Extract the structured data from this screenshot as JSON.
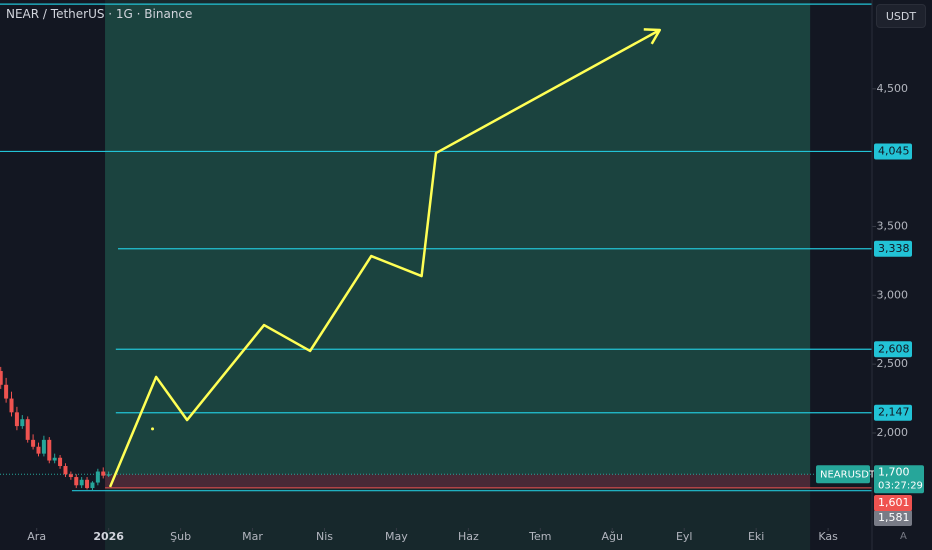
{
  "header": {
    "title": "NEAR / TetherUS · 1G · Binance",
    "currency": "USDT",
    "scale_mode": "A"
  },
  "chart_data": {
    "type": "candlestick",
    "xlim": [
      -0.51,
      11.61
    ],
    "ylim": [
      1150,
      5145
    ],
    "xticks": [
      {
        "value": 0,
        "label": "Ara"
      },
      {
        "value": 1,
        "label": "2026"
      },
      {
        "value": 2,
        "label": "Şub"
      },
      {
        "value": 3,
        "label": "Mar"
      },
      {
        "value": 4,
        "label": "Nis"
      },
      {
        "value": 5,
        "label": "May"
      },
      {
        "value": 6,
        "label": "Haz"
      },
      {
        "value": 7,
        "label": "Tem"
      },
      {
        "value": 8,
        "label": "Ağu"
      },
      {
        "value": 9,
        "label": "Eyl"
      },
      {
        "value": 10,
        "label": "Eki"
      },
      {
        "value": 11,
        "label": "Kas"
      }
    ],
    "yticks": [
      {
        "value": 2000,
        "label": "2,000"
      },
      {
        "value": 2500,
        "label": "2,500"
      },
      {
        "value": 3000,
        "label": "3,000"
      },
      {
        "value": 3500,
        "label": "3,500"
      },
      {
        "value": 4500,
        "label": "4,500"
      }
    ],
    "series": [
      {
        "name": "NEARUSDT",
        "up_color": "#26a69a",
        "down_color": "#ef5350",
        "x": [
          -0.5,
          -0.425,
          -0.35,
          -0.275,
          -0.2,
          -0.125,
          -0.05,
          0.025,
          0.1,
          0.175,
          0.25,
          0.325,
          0.4,
          0.475,
          0.55,
          0.625,
          0.7,
          0.775,
          0.85,
          0.925,
          1.0
        ],
        "open": [
          2450,
          2350,
          2250,
          2150,
          2050,
          2100,
          1950,
          1900,
          1850,
          1950,
          1800,
          1820,
          1760,
          1700,
          1680,
          1620,
          1660,
          1600,
          1640,
          1720,
          1690
        ],
        "high": [
          2480,
          2400,
          2300,
          2190,
          2130,
          2120,
          1990,
          1930,
          1980,
          1970,
          1850,
          1840,
          1780,
          1720,
          1700,
          1680,
          1680,
          1650,
          1740,
          1750,
          1720
        ],
        "low": [
          2320,
          2220,
          2120,
          2020,
          2030,
          1930,
          1880,
          1830,
          1830,
          1780,
          1780,
          1740,
          1680,
          1660,
          1600,
          1600,
          1590,
          1581,
          1620,
          1670,
          1680
        ],
        "close": [
          2350,
          2250,
          2150,
          2050,
          2100,
          1950,
          1900,
          1850,
          1950,
          1800,
          1820,
          1760,
          1700,
          1680,
          1620,
          1660,
          1600,
          1640,
          1720,
          1690,
          1700
        ]
      }
    ],
    "last_price": {
      "value": 1700,
      "label": "1,700",
      "countdown": "03:27:29"
    },
    "level_color": "#22c3d6",
    "levels": [
      {
        "value": 5115,
        "x_start": -0.51
      },
      {
        "value": 4045,
        "label": "4,045",
        "x_start": -0.51
      },
      {
        "value": 3338,
        "label": "3,338",
        "x_start": 1.13
      },
      {
        "value": 2608,
        "label": "2,608",
        "x_start": 1.1
      },
      {
        "value": 2147,
        "label": "2,147",
        "x_start": 1.1
      },
      {
        "value": 1581,
        "label": "1,581",
        "x_start": 0.49
      }
    ],
    "position": {
      "x_start": 0.95,
      "x_end": 10.75,
      "entry": 1700,
      "target": 5115,
      "stop": 1601,
      "stop_label": "1,601"
    },
    "projection": {
      "color": "#ffff55",
      "x": [
        1.02,
        1.66,
        2.09,
        3.16,
        3.8,
        4.65,
        5.35,
        5.55,
        8.66
      ],
      "values": [
        1608,
        2407,
        2094,
        2784,
        2596,
        3285,
        3140,
        4033,
        4927
      ]
    },
    "marker": {
      "x": 1.61,
      "value": 2030
    }
  }
}
